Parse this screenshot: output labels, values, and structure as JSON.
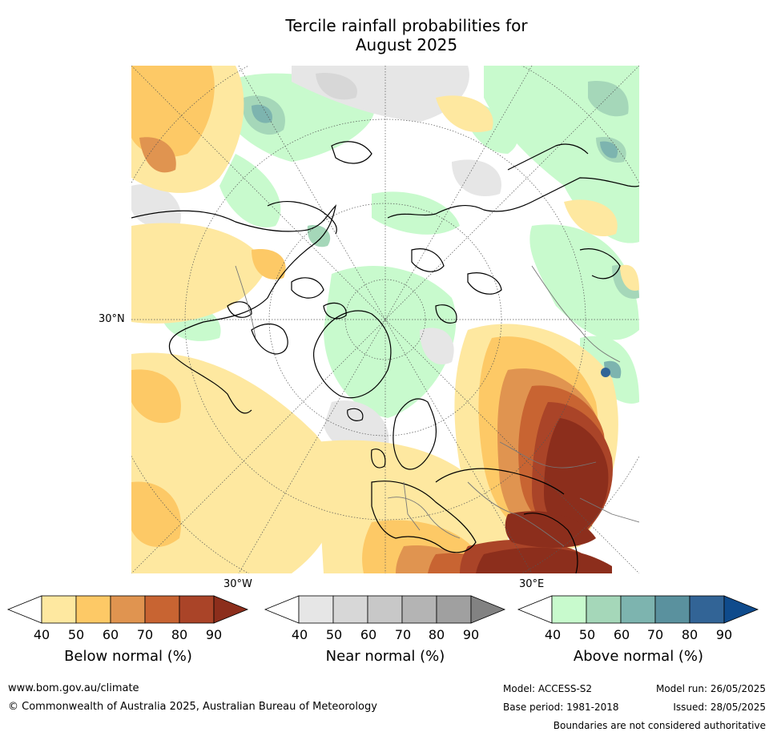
{
  "title_line1": "Tercile rainfall probabilities for",
  "title_line2": "August 2025",
  "map": {
    "lat_label": "30°N",
    "lon_label_west": "30°W",
    "lon_label_east": "30°E"
  },
  "colorbars": [
    {
      "label": "Below normal (%)",
      "ticks": [
        "40",
        "50",
        "60",
        "70",
        "80",
        "90"
      ],
      "colors": [
        "#ffffff",
        "#fee8a0",
        "#fdc966",
        "#e09450",
        "#c86432",
        "#aa4428",
        "#8c2e1c"
      ]
    },
    {
      "label": "Near normal (%)",
      "ticks": [
        "40",
        "50",
        "60",
        "70",
        "80",
        "90"
      ],
      "colors": [
        "#ffffff",
        "#e6e6e6",
        "#d7d7d7",
        "#c8c8c8",
        "#b4b4b4",
        "#a0a0a0",
        "#828282"
      ]
    },
    {
      "label": "Above normal (%)",
      "ticks": [
        "40",
        "50",
        "60",
        "70",
        "80",
        "90"
      ],
      "colors": [
        "#ffffff",
        "#c8facd",
        "#a5d7b9",
        "#7db4af",
        "#5a919e",
        "#326496",
        "#0f4b8c"
      ]
    }
  ],
  "footer": {
    "website": "www.bom.gov.au/climate",
    "copyright": "© Commonwealth of Australia 2025, Australian Bureau of Meteorology",
    "model": "Model: ACCESS-S2",
    "model_run": "Model run: 26/05/2025",
    "base_period": "Base period: 1981-2018",
    "issued": "Issued: 28/05/2025",
    "disclaimer": "Boundaries are not considered authoritative"
  }
}
